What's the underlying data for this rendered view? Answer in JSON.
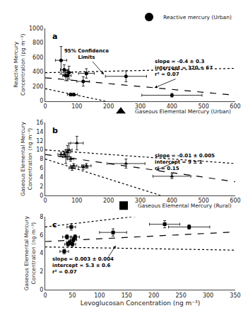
{
  "chart_data": [
    {
      "type": "scatter",
      "title": "a",
      "y_label": "Reactive Mercury\nConcentration (pg m⁻³)",
      "xlim": [
        0,
        600
      ],
      "ylim": [
        0,
        1000
      ],
      "xticks": [
        0,
        100,
        200,
        300,
        400,
        500,
        600
      ],
      "yticks": [
        0,
        200,
        400,
        600,
        800,
        1000
      ],
      "grid": false,
      "legend": "upper right",
      "series": [
        {
          "name": "Reactive mercury (Urban)",
          "color": "#000000",
          "marker": "circle",
          "x": [
            50,
            60,
            65,
            70,
            75,
            80,
            90,
            120,
            130,
            255,
            400
          ],
          "values": [
            560,
            430,
            350,
            350,
            390,
            90,
            90,
            270,
            380,
            340,
            80
          ],
          "x_error": [
            18,
            12,
            10,
            12,
            12,
            10,
            12,
            20,
            25,
            65,
            95
          ],
          "y_error": [
            190,
            70,
            70,
            70,
            90,
            20,
            20,
            65,
            65,
            75,
            25
          ]
        }
      ],
      "fit": {
        "slope": -0.4,
        "intercept": 320,
        "line_style": "dashed"
      },
      "confidence_limits": {
        "upper": {
          "slope": 0.1,
          "intercept": 390
        },
        "lower": {
          "slope": -0.9,
          "intercept": 170
        },
        "line_style": "dotted"
      },
      "annotations": [
        "slope = -0.4 ± 0.3\nintercept = 320 ± 67\nr² = 0.07",
        "95% Confidence\nLimits"
      ]
    },
    {
      "type": "scatter",
      "title": "b",
      "y_label": "Gaseous Elemental Mercury\nConcentration (ng m⁻³)",
      "xlim": [
        0,
        600
      ],
      "ylim": [
        0,
        16
      ],
      "xticks": [
        0,
        100,
        200,
        300,
        400,
        500,
        600
      ],
      "yticks": [
        0,
        2,
        4,
        6,
        8,
        10,
        12,
        14,
        16
      ],
      "grid": false,
      "legend": "upper right",
      "series": [
        {
          "name": "Gaseous Elemental Mercury (Urban)",
          "color": "#000000",
          "marker": "triangle-up",
          "x": [
            50,
            60,
            65,
            70,
            75,
            80,
            85,
            90,
            100,
            120,
            130,
            255,
            400
          ],
          "values": [
            9.0,
            9.0,
            8.5,
            9.5,
            10.0,
            8.0,
            6.0,
            6.5,
            11.5,
            6.2,
            6.5,
            7.0,
            4.2
          ],
          "x_error": [
            10,
            10,
            10,
            10,
            10,
            10,
            10,
            10,
            20,
            15,
            15,
            60,
            60
          ],
          "y_error": [
            0.5,
            0.5,
            1.5,
            1.5,
            1.5,
            0.5,
            0.5,
            0.5,
            1.5,
            0.5,
            0.5,
            1.0,
            0.5
          ]
        }
      ],
      "fit": {
        "slope": -0.01,
        "intercept": 9,
        "line_style": "dashed"
      },
      "confidence_limits": {
        "upper": {
          "slope": -0.005,
          "intercept": 10
        },
        "lower": {
          "slope": -0.022,
          "intercept": 8
        },
        "line_style": "dotted"
      },
      "annotations": [
        "slope = -0.01 ± 0.005\nintercept = 9 ± 1\nr² = 0.15"
      ]
    },
    {
      "type": "scatter",
      "title": "c",
      "y_label": "Gaseous Elemental Mercury\nConcentration (ng m⁻³)",
      "x_label": "Levoglucosan Concentration (ng m⁻³)",
      "xlim": [
        0,
        350
      ],
      "ylim": [
        0,
        8
      ],
      "xticks": [
        0,
        50,
        100,
        150,
        200,
        250,
        300,
        350
      ],
      "yticks": [
        0,
        2,
        4,
        6,
        8
      ],
      "grid": false,
      "legend": "upper right",
      "series": [
        {
          "name": "Gaseous Elemental Mercury (Rural)",
          "color": "#000000",
          "marker": "square",
          "x": [
            35,
            40,
            42,
            45,
            48,
            50,
            52,
            55,
            125,
            220,
            265
          ],
          "values": [
            4.2,
            5.8,
            5.0,
            5.2,
            6.9,
            5.0,
            5.5,
            5.8,
            6.3,
            7.2,
            6.9
          ],
          "x_error": [
            8,
            8,
            6,
            6,
            8,
            6,
            6,
            8,
            25,
            28,
            38
          ],
          "y_error": [
            0.25,
            0.25,
            0.25,
            0.25,
            0.35,
            0.25,
            0.25,
            0.25,
            0.4,
            0.4,
            0.25
          ]
        }
      ],
      "fit": {
        "slope": 0.003,
        "intercept": 5.3,
        "line_style": "dashed"
      },
      "confidence_limits": {
        "upper": {
          "slope": 0.007,
          "intercept": 6.9
        },
        "lower": {
          "slope": -0.001,
          "intercept": 4.7
        },
        "line_style": "dotted"
      },
      "annotations": [
        "slope = 0.003 ± 0.004\nintercept = 5.3 ± 0.6\nr² = 0.07"
      ]
    }
  ]
}
